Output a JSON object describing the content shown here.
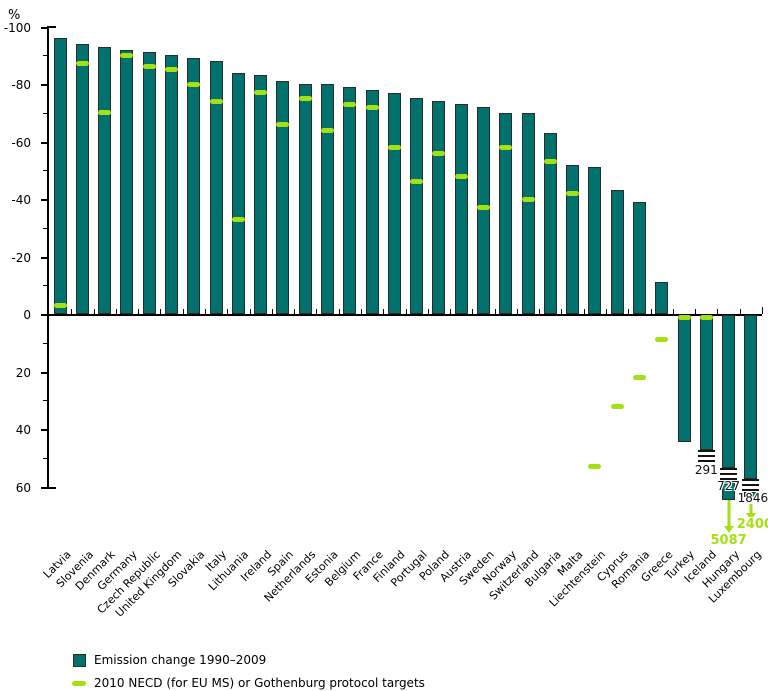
{
  "chart": {
    "unit_label": "%",
    "colors": {
      "bar": "#00716c",
      "bar_border": "#2b2b2b",
      "target": "#a3e114",
      "axis": "#000000"
    }
  },
  "chart_data": {
    "type": "bar",
    "title": "",
    "xlabel": "",
    "ylabel": "%",
    "ylim": [
      -100,
      60
    ],
    "y_axis_inverted": true,
    "y_tick_labels": [
      "-100",
      "-80",
      "-60",
      "-40",
      "-20",
      "0",
      "20",
      "40",
      "60"
    ],
    "y_minor_ticks": [
      -90,
      -70,
      -50,
      -30,
      -10,
      10,
      30,
      50
    ],
    "grid": false,
    "legend_position": "bottom-left",
    "series": [
      {
        "name": "Emission change 1990–2009",
        "type": "bar",
        "color": "#00716c"
      },
      {
        "name": "2010 NECD (for EU MS) or Gothenburg protocol targets",
        "type": "target-dash",
        "color": "#a3e114"
      }
    ],
    "countries": [
      {
        "name": "Latvia",
        "change_pct": -96,
        "target_pct": -3
      },
      {
        "name": "Slovenia",
        "change_pct": -94,
        "target_pct": -87
      },
      {
        "name": "Denmark",
        "change_pct": -93,
        "target_pct": -70
      },
      {
        "name": "Germany",
        "change_pct": -92,
        "target_pct": -90
      },
      {
        "name": "Czech Republic",
        "change_pct": -91,
        "target_pct": -86
      },
      {
        "name": "United Kingdom",
        "change_pct": -90,
        "target_pct": -85
      },
      {
        "name": "Slovakia",
        "change_pct": -89,
        "target_pct": -80
      },
      {
        "name": "Italy",
        "change_pct": -88,
        "target_pct": -74
      },
      {
        "name": "Lithuania",
        "change_pct": -84,
        "target_pct": -33
      },
      {
        "name": "Ireland",
        "change_pct": -83,
        "target_pct": -77
      },
      {
        "name": "Spain",
        "change_pct": -81,
        "target_pct": -66
      },
      {
        "name": "Netherlands",
        "change_pct": -80,
        "target_pct": -75
      },
      {
        "name": "Estonia",
        "change_pct": -80,
        "target_pct": -64
      },
      {
        "name": "Belgium",
        "change_pct": -79,
        "target_pct": -73
      },
      {
        "name": "France",
        "change_pct": -78,
        "target_pct": -72
      },
      {
        "name": "Finland",
        "change_pct": -77,
        "target_pct": -58
      },
      {
        "name": "Portugal",
        "change_pct": -75,
        "target_pct": -46
      },
      {
        "name": "Poland",
        "change_pct": -74,
        "target_pct": -56
      },
      {
        "name": "Austria",
        "change_pct": -73,
        "target_pct": -48
      },
      {
        "name": "Sweden",
        "change_pct": -72,
        "target_pct": -37
      },
      {
        "name": "Norway",
        "change_pct": -70,
        "target_pct": -58
      },
      {
        "name": "Switzerland",
        "change_pct": -70,
        "target_pct": -40
      },
      {
        "name": "Bulgaria",
        "change_pct": -63,
        "target_pct": -53
      },
      {
        "name": "Malta",
        "change_pct": -52,
        "target_pct": -42
      },
      {
        "name": "Liechtenstein",
        "change_pct": -51,
        "target_pct": 53
      },
      {
        "name": "Cyprus",
        "change_pct": -43,
        "target_pct": 32
      },
      {
        "name": "Romania",
        "change_pct": -39,
        "target_pct": 22
      },
      {
        "name": "Greece",
        "change_pct": -11,
        "target_pct": 9
      },
      {
        "name": "Turkey",
        "change_pct": 44,
        "target_pct": 0
      },
      {
        "name": "Iceland",
        "change_pct": 291,
        "target_pct": 0,
        "bar_broken": true,
        "value_label": "291"
      },
      {
        "name": "Hungary",
        "change_pct": 727,
        "target_pct": 5087,
        "bar_broken": true,
        "value_label": "727",
        "target_label": "5087",
        "target_off_scale": true
      },
      {
        "name": "Luxembourg",
        "change_pct": 1846,
        "target_pct": 2400,
        "bar_broken": true,
        "value_label": "1846",
        "target_label": "2400",
        "target_off_scale": true
      }
    ]
  }
}
